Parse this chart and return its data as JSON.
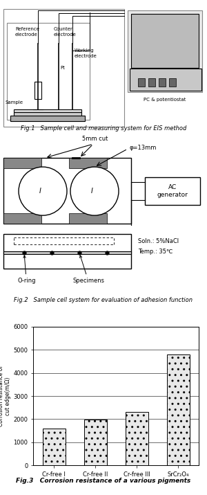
{
  "fig1_caption": "Fig.1   Sample cell and measuring system for EIS method",
  "fig2_caption": "Fig.2   Sample cell system for evaluation of adhesion function",
  "fig3_caption": "Fig.3   Corrosion resistance of a various pigments",
  "bar_categories": [
    "Cr-free I",
    "Cr-free II",
    "Cr-free III",
    "SrCr₂O₄"
  ],
  "bar_values": [
    1580,
    1980,
    2300,
    4800
  ],
  "ylim": [
    0,
    6000
  ],
  "yticks": [
    0,
    1000,
    2000,
    3000,
    4000,
    5000,
    6000
  ],
  "ylabel_line1": "Corrosion resistance of",
  "ylabel_line2": "cut edge(m/Ω)",
  "bg_color": "#f0eeea"
}
